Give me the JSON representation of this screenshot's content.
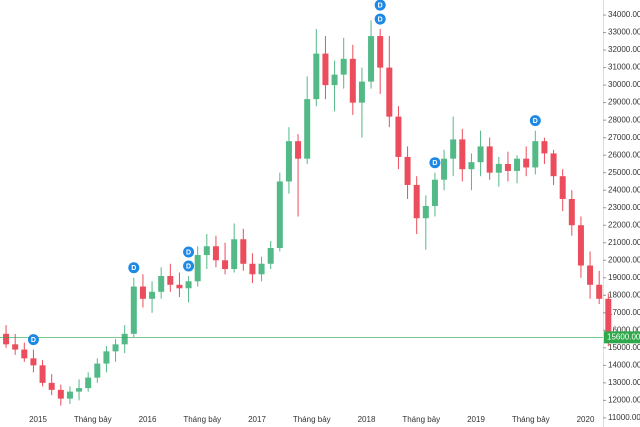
{
  "chart_data": {
    "type": "candlestick",
    "x": [
      "2014-09",
      "2014-10",
      "2014-11",
      "2014-12",
      "2015-01",
      "2015-02",
      "2015-03",
      "2015-04",
      "2015-05",
      "2015-06",
      "2015-07",
      "2015-08",
      "2015-09",
      "2015-10",
      "2015-11",
      "2015-12",
      "2016-01",
      "2016-02",
      "2016-03",
      "2016-04",
      "2016-05",
      "2016-06",
      "2016-07",
      "2016-08",
      "2016-09",
      "2016-10",
      "2016-11",
      "2016-12",
      "2017-01",
      "2017-02",
      "2017-03",
      "2017-04",
      "2017-05",
      "2017-06",
      "2017-07",
      "2017-08",
      "2017-09",
      "2017-10",
      "2017-11",
      "2017-12",
      "2018-01",
      "2018-02",
      "2018-03",
      "2018-04",
      "2018-05",
      "2018-06",
      "2018-07",
      "2018-08",
      "2018-09",
      "2018-10",
      "2018-11",
      "2018-12",
      "2019-01",
      "2019-02",
      "2019-03",
      "2019-04",
      "2019-05",
      "2019-06",
      "2019-07",
      "2019-08",
      "2019-09",
      "2019-10",
      "2019-11",
      "2019-12",
      "2020-01",
      "2020-02",
      "2020-03"
    ],
    "open": [
      15800,
      15200,
      14900,
      14400,
      14000,
      13000,
      12600,
      12100,
      12500,
      12700,
      13300,
      14100,
      14800,
      15200,
      15800,
      18500,
      17800,
      18200,
      19100,
      18600,
      18400,
      18800,
      20300,
      20800,
      20000,
      19500,
      21200,
      19800,
      19200,
      19800,
      20700,
      24500,
      26800,
      25800,
      29200,
      31800,
      30000,
      30600,
      31500,
      29000,
      30200,
      32800,
      31000,
      28200,
      25900,
      24300,
      22400,
      23100,
      24600,
      25800,
      26900,
      25200,
      25600,
      26500,
      25000,
      25500,
      25100,
      25800,
      25300,
      26800,
      26100,
      24800,
      23500,
      22000,
      19700,
      18600,
      17800
    ],
    "high": [
      16300,
      15800,
      15300,
      14900,
      14300,
      13500,
      12900,
      12800,
      13200,
      13600,
      14400,
      15100,
      15500,
      16300,
      19000,
      19200,
      18800,
      19600,
      19800,
      19300,
      19100,
      20800,
      21500,
      21400,
      21000,
      22100,
      21800,
      20400,
      20200,
      21100,
      25000,
      27600,
      27200,
      30500,
      33200,
      32800,
      31400,
      32700,
      32300,
      31000,
      33700,
      33200,
      32800,
      28800,
      26500,
      24800,
      23700,
      25000,
      26300,
      28200,
      27500,
      26100,
      27400,
      27000,
      25900,
      26200,
      26000,
      26500,
      27400,
      27000,
      26300,
      25200,
      24000,
      22500,
      20500,
      19400,
      18100
    ],
    "low": [
      15000,
      14600,
      14200,
      13600,
      12800,
      12300,
      11700,
      11800,
      12000,
      12500,
      13000,
      13600,
      14200,
      14700,
      15600,
      17300,
      17000,
      17800,
      18200,
      17900,
      17600,
      18500,
      19500,
      19600,
      19200,
      19300,
      19400,
      18700,
      18800,
      19500,
      20500,
      23800,
      22500,
      25500,
      28800,
      29200,
      28500,
      29800,
      28300,
      27000,
      29800,
      29500,
      27600,
      25200,
      23500,
      21500,
      20600,
      22500,
      24000,
      24800,
      24500,
      24000,
      24800,
      24600,
      24200,
      24500,
      24400,
      24800,
      24900,
      25500,
      24300,
      22800,
      21400,
      19000,
      17800,
      17500,
      15100
    ],
    "close": [
      15200,
      14900,
      14400,
      14000,
      13000,
      12600,
      12100,
      12500,
      12700,
      13300,
      14100,
      14800,
      15200,
      15800,
      18500,
      17800,
      18200,
      19100,
      18600,
      18400,
      18800,
      20300,
      20800,
      20000,
      19500,
      21200,
      19800,
      19200,
      19800,
      20700,
      24500,
      26800,
      25800,
      29200,
      31800,
      30000,
      30600,
      31500,
      29000,
      30200,
      32800,
      31000,
      28200,
      25900,
      24300,
      22400,
      23100,
      24600,
      25800,
      26900,
      25200,
      25600,
      26500,
      25000,
      25500,
      25100,
      25800,
      25300,
      26800,
      26100,
      24800,
      23500,
      22000,
      19700,
      18600,
      17800,
      15600
    ],
    "up_color": "#53b987",
    "down_color": "#eb4d5c",
    "ylim": [
      10480,
      34860
    ],
    "yticks": [
      {
        "value": 11000,
        "label": "11000.00"
      },
      {
        "value": 12000,
        "label": "12000.00"
      },
      {
        "value": 13000,
        "label": "13000.00"
      },
      {
        "value": 14000,
        "label": "14000.00"
      },
      {
        "value": 15000,
        "label": "15000.00"
      },
      {
        "value": 16000,
        "label": "16000.00"
      },
      {
        "value": 17000,
        "label": "17000.00"
      },
      {
        "value": 18000,
        "label": "18000.00"
      },
      {
        "value": 19000,
        "label": "19000.00"
      },
      {
        "value": 20000,
        "label": "20000.00"
      },
      {
        "value": 21000,
        "label": "21000.00"
      },
      {
        "value": 22000,
        "label": "22000.00"
      },
      {
        "value": 23000,
        "label": "23000.00"
      },
      {
        "value": 24000,
        "label": "24000.00"
      },
      {
        "value": 25000,
        "label": "25000.00"
      },
      {
        "value": 26000,
        "label": "26000.00"
      },
      {
        "value": 27000,
        "label": "27000.00"
      },
      {
        "value": 28000,
        "label": "28000.00"
      },
      {
        "value": 29000,
        "label": "29000.00"
      },
      {
        "value": 30000,
        "label": "30000.00"
      },
      {
        "value": 31000,
        "label": "31000.00"
      },
      {
        "value": 32000,
        "label": "32000.00"
      },
      {
        "value": 33000,
        "label": "33000.00"
      },
      {
        "value": 34000,
        "label": "34000.00"
      }
    ],
    "xticks": [
      {
        "value": "2015-01",
        "label": "2015"
      },
      {
        "value": "2015-07",
        "label": "Tháng bảy"
      },
      {
        "value": "2016-01",
        "label": "2016"
      },
      {
        "value": "2016-07",
        "label": "Tháng bảy"
      },
      {
        "value": "2017-01",
        "label": "2017"
      },
      {
        "value": "2017-07",
        "label": "Tháng bảy"
      },
      {
        "value": "2018-01",
        "label": "2018"
      },
      {
        "value": "2018-07",
        "label": "Tháng bảy"
      },
      {
        "value": "2019-01",
        "label": "2019"
      },
      {
        "value": "2019-07",
        "label": "Tháng bảy"
      },
      {
        "value": "2020-01",
        "label": "2020"
      }
    ],
    "last_price": {
      "value": 15600,
      "label": "15600.00",
      "color": "#2ea84a"
    },
    "markers": [
      {
        "x": "2014-12",
        "label": "D"
      },
      {
        "x": "2015-11",
        "label": "D"
      },
      {
        "x": "2016-05",
        "label": "D"
      },
      {
        "x": "2016-05",
        "label": "D"
      },
      {
        "x": "2018-02",
        "label": "D"
      },
      {
        "x": "2018-02",
        "label": "D"
      },
      {
        "x": "2018-08",
        "label": "D"
      },
      {
        "x": "2019-07",
        "label": "D"
      }
    ],
    "marker_color": "#1e88e5"
  }
}
